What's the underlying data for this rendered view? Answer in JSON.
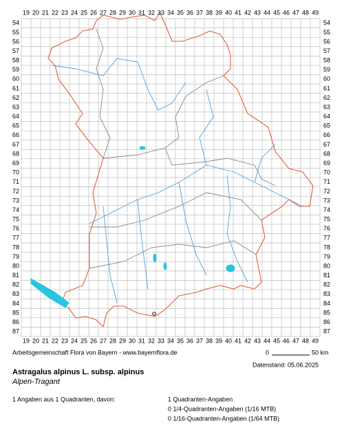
{
  "map": {
    "columns": [
      19,
      20,
      21,
      22,
      23,
      24,
      25,
      26,
      27,
      28,
      29,
      30,
      31,
      32,
      33,
      34,
      35,
      36,
      37,
      38,
      39,
      40,
      41,
      42,
      43,
      44,
      45,
      46,
      47,
      48,
      49
    ],
    "rows": [
      54,
      55,
      56,
      57,
      58,
      59,
      60,
      61,
      62,
      63,
      64,
      65,
      66,
      67,
      68,
      69,
      70,
      71,
      72,
      73,
      74,
      75,
      76,
      77,
      78,
      79,
      80,
      81,
      82,
      83,
      84,
      85,
      86,
      87
    ],
    "credit": "Arbeitsgemeinschaft Flora von Bayern - www.bayernflora.de",
    "scale_start": "0",
    "scale_end": "50 km",
    "date": "Datenstand: 05.06.2025"
  },
  "species": {
    "name": "Astragalus alpinus L. subsp. alpinus",
    "common_name": "Alpen-Tragant"
  },
  "summary": {
    "total": "1 Angaben aus 1 Quadranten, davon:",
    "lines": [
      "1 Quadranten-Angaben",
      "0 1/4-Quadranten-Angaben (1/16 MTB)",
      "0 1/16-Quadranten-Angaben (1/64 MTB)"
    ]
  }
}
